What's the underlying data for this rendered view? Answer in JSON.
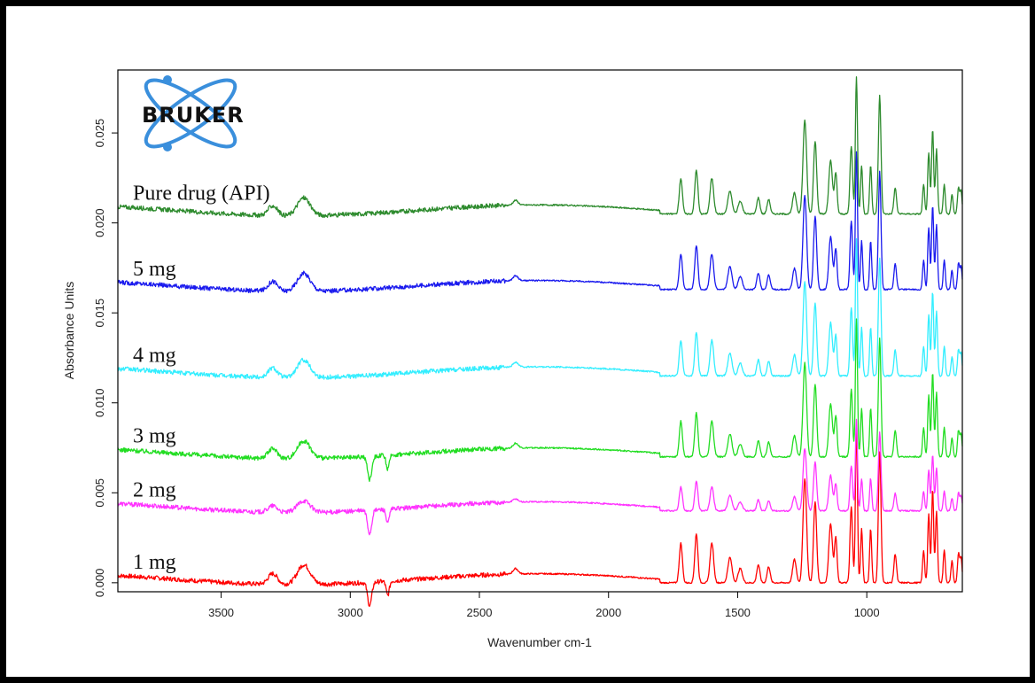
{
  "chart_data": {
    "type": "line",
    "title": "",
    "xlabel": "Wavenumber cm-1",
    "ylabel": "Absorbance Units",
    "xlim": [
      3900,
      630
    ],
    "ylim": [
      -0.0005,
      0.0285
    ],
    "x_reversed": true,
    "grid": false,
    "x_ticks": [
      3500,
      3000,
      2500,
      2000,
      1500,
      1000
    ],
    "x_tick_labels": [
      "3500",
      "3000",
      "2500",
      "2000",
      "1500",
      "1000"
    ],
    "y_ticks": [
      0.0,
      0.005,
      0.01,
      0.015,
      0.02,
      0.025
    ],
    "y_tick_labels": [
      "0.000",
      "0.005",
      "0.010",
      "0.015",
      "0.020",
      "0.025"
    ],
    "series": [
      {
        "name": "1 mg",
        "color": "#ff0000",
        "baseline": 0.0,
        "scale": 1.0,
        "dip": true,
        "x": [
          3900,
          3300,
          3180,
          2920,
          2360,
          1740,
          1720,
          1660,
          1600,
          1530,
          1420,
          1380,
          1330,
          1280,
          1240,
          1200,
          1140,
          1060,
          1040,
          1020,
          990,
          950,
          890,
          780,
          750,
          730,
          700,
          660,
          630
        ],
        "y": [
          0.0,
          0.0005,
          0.001,
          -0.0003,
          0.0001,
          0.0,
          0.0017,
          0.0022,
          0.0018,
          0.0012,
          0.0009,
          0.0008,
          0.0004,
          0.0012,
          0.0045,
          0.0035,
          0.0028,
          0.003,
          0.0085,
          0.0022,
          0.0025,
          0.0048,
          0.0015,
          0.0017,
          0.0045,
          0.0038,
          0.0015,
          0.001,
          0.0012
        ]
      },
      {
        "name": "2 mg",
        "color": "#ff33ff",
        "baseline": 0.004,
        "scale": 0.6,
        "dip": true,
        "x": [
          3900,
          3300,
          3180,
          2920,
          2360,
          1740,
          1720,
          1660,
          1600,
          1530,
          1420,
          1380,
          1330,
          1280,
          1240,
          1200,
          1140,
          1060,
          1040,
          1020,
          990,
          950,
          890,
          780,
          750,
          730,
          700,
          660,
          630
        ],
        "y": [
          0.0035,
          0.0048,
          0.0052,
          0.0036,
          0.0042,
          0.004,
          0.0053,
          0.0057,
          0.0055,
          0.005,
          0.0047,
          0.0046,
          0.0043,
          0.0048,
          0.0067,
          0.006,
          0.0055,
          0.0057,
          0.0085,
          0.005,
          0.0052,
          0.0068,
          0.0046,
          0.0047,
          0.0063,
          0.0058,
          0.0045,
          0.0042,
          0.0044
        ]
      },
      {
        "name": "3 mg",
        "color": "#22dd22",
        "baseline": 0.007,
        "scale": 0.9,
        "dip": true,
        "x": [
          3900,
          3300,
          3180,
          2920,
          2360,
          1740,
          1720,
          1660,
          1600,
          1530,
          1420,
          1380,
          1330,
          1280,
          1240,
          1200,
          1140,
          1060,
          1040,
          1020,
          990,
          950,
          890,
          780,
          750,
          730,
          700,
          660,
          630
        ],
        "y": [
          0.007,
          0.0082,
          0.0087,
          0.0072,
          0.0079,
          0.0078,
          0.0088,
          0.0095,
          0.009,
          0.0085,
          0.0081,
          0.008,
          0.0076,
          0.0083,
          0.0117,
          0.0108,
          0.01,
          0.0102,
          0.015,
          0.0093,
          0.0096,
          0.0123,
          0.0085,
          0.0087,
          0.0108,
          0.0102,
          0.0083,
          0.0078,
          0.008
        ]
      },
      {
        "name": "4 mg",
        "color": "#33eeff",
        "baseline": 0.0115,
        "scale": 0.9,
        "dip": false,
        "x": [
          3900,
          3300,
          3180,
          2920,
          2360,
          1740,
          1720,
          1660,
          1600,
          1530,
          1420,
          1380,
          1330,
          1280,
          1240,
          1200,
          1140,
          1060,
          1040,
          1020,
          990,
          950,
          890,
          780,
          750,
          730,
          700,
          660,
          630
        ],
        "y": [
          0.0115,
          0.0121,
          0.0126,
          0.0117,
          0.0121,
          0.0117,
          0.0128,
          0.0134,
          0.013,
          0.0125,
          0.0121,
          0.012,
          0.0117,
          0.0124,
          0.0162,
          0.0153,
          0.0145,
          0.0147,
          0.0195,
          0.0137,
          0.014,
          0.0166,
          0.0128,
          0.013,
          0.0151,
          0.0146,
          0.0126,
          0.0122,
          0.0124
        ]
      },
      {
        "name": "5 mg",
        "color": "#1a1aee",
        "baseline": 0.0163,
        "scale": 0.9,
        "dip": false,
        "x": [
          3900,
          3300,
          3180,
          2920,
          2360,
          1740,
          1720,
          1660,
          1600,
          1530,
          1420,
          1380,
          1330,
          1280,
          1240,
          1200,
          1140,
          1060,
          1040,
          1020,
          990,
          950,
          890,
          780,
          750,
          730,
          700,
          660,
          630
        ],
        "y": [
          0.0163,
          0.0169,
          0.0174,
          0.0165,
          0.017,
          0.0166,
          0.0181,
          0.0188,
          0.0183,
          0.0177,
          0.0172,
          0.0171,
          0.0168,
          0.0175,
          0.0211,
          0.0202,
          0.0193,
          0.0195,
          0.0243,
          0.0186,
          0.0189,
          0.0215,
          0.0177,
          0.0179,
          0.0199,
          0.0194,
          0.0175,
          0.017,
          0.0172
        ]
      },
      {
        "name": "Pure drug (API)",
        "color": "#2e8b2e",
        "baseline": 0.0205,
        "scale": 0.9,
        "dip": false,
        "x": [
          3900,
          3300,
          3180,
          2920,
          2360,
          1740,
          1720,
          1660,
          1600,
          1530,
          1420,
          1380,
          1330,
          1280,
          1240,
          1200,
          1140,
          1060,
          1040,
          1020,
          990,
          950,
          890,
          780,
          750,
          730,
          700,
          660,
          630
        ],
        "y": [
          0.0205,
          0.0211,
          0.0216,
          0.0209,
          0.0211,
          0.0206,
          0.0223,
          0.0229,
          0.0224,
          0.0218,
          0.0213,
          0.0212,
          0.0209,
          0.0216,
          0.0253,
          0.0244,
          0.0235,
          0.0237,
          0.0285,
          0.0228,
          0.0231,
          0.0285,
          0.0219,
          0.0221,
          0.0247,
          0.0241,
          0.022,
          0.0214,
          0.0216
        ]
      }
    ],
    "series_labels": [
      {
        "text": "Pure drug (API)",
        "series": "Pure drug (API)"
      },
      {
        "text": "5 mg",
        "series": "5 mg"
      },
      {
        "text": "4 mg",
        "series": "4 mg"
      },
      {
        "text": "3 mg",
        "series": "3 mg"
      },
      {
        "text": "2 mg",
        "series": "2 mg"
      },
      {
        "text": "1 mg",
        "series": "1 mg"
      }
    ]
  },
  "logo": {
    "text": "BRUKER",
    "icon": "atom-orbit-logo",
    "color": "#3a8fdc"
  }
}
